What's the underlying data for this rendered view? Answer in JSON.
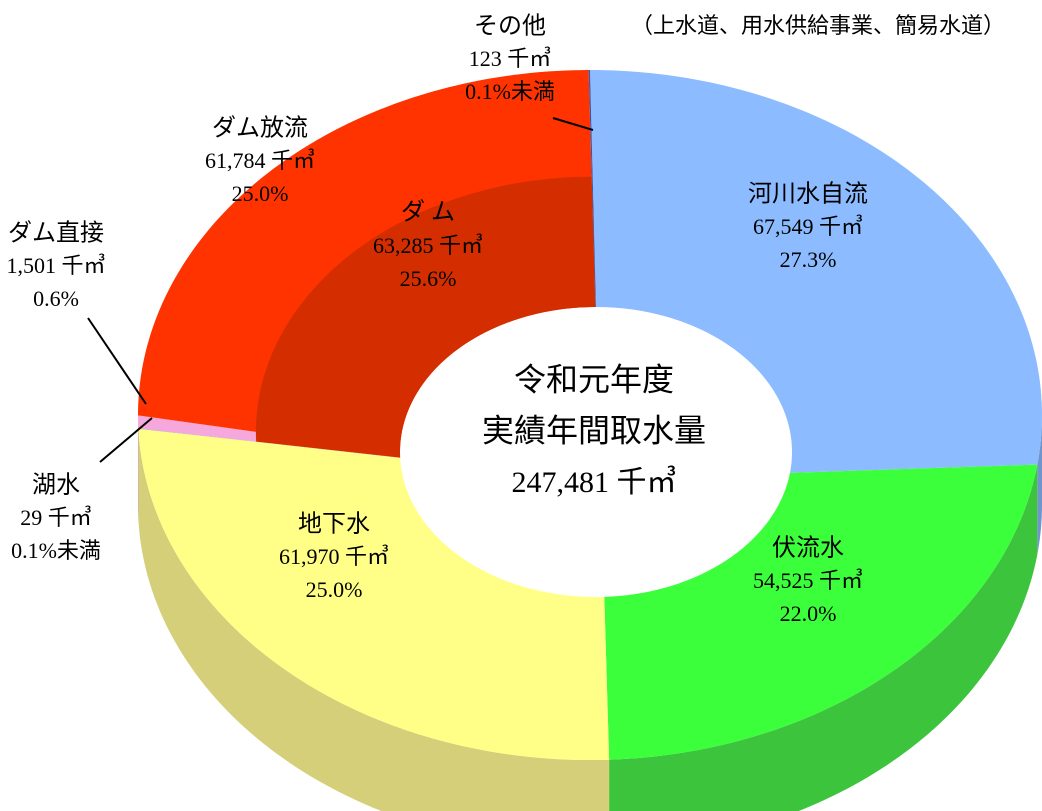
{
  "chart_data": {
    "type": "donut3d",
    "title": [
      "令和元年度",
      "実績年間取水量"
    ],
    "total": 247481,
    "total_label": "247,481 千㎥",
    "subtitle": "（上水道、用水供給事業、簡易水道）",
    "categories": [
      "河川水自流",
      "伏流水",
      "地下水",
      "湖水",
      "ダム直接",
      "ダム放流",
      "その他"
    ],
    "values": [
      67549,
      54525,
      61970,
      29,
      1501,
      61784,
      123
    ],
    "value_labels": [
      "67,549 千㎥",
      "54,525 千㎥",
      "61,970 千㎥",
      "29 千㎥",
      "1,501 千㎥",
      "61,784 千㎥",
      "123 千㎥"
    ],
    "percent_labels": [
      "27.3%",
      "22.0%",
      "25.0%",
      "0.1%未満",
      "0.6%",
      "25.0%",
      "0.1%未満"
    ],
    "colors": [
      "#8cbcff",
      "#3cff3c",
      "#ffff88",
      "#5a78c8",
      "#f6a8dc",
      "#ff3300",
      "#3f55a8"
    ],
    "side_colors": [
      "#6f95cc",
      "#3cc43c",
      "#d4cf78",
      "#4a62a0",
      "#c985b2",
      "#c42800",
      "#2f4080"
    ],
    "group": {
      "name": "ダ ム",
      "value": 63285,
      "value_label": "63,285 千㎥",
      "percent_label": "25.6%",
      "members": [
        4,
        5
      ],
      "color": "#d42e00"
    }
  }
}
